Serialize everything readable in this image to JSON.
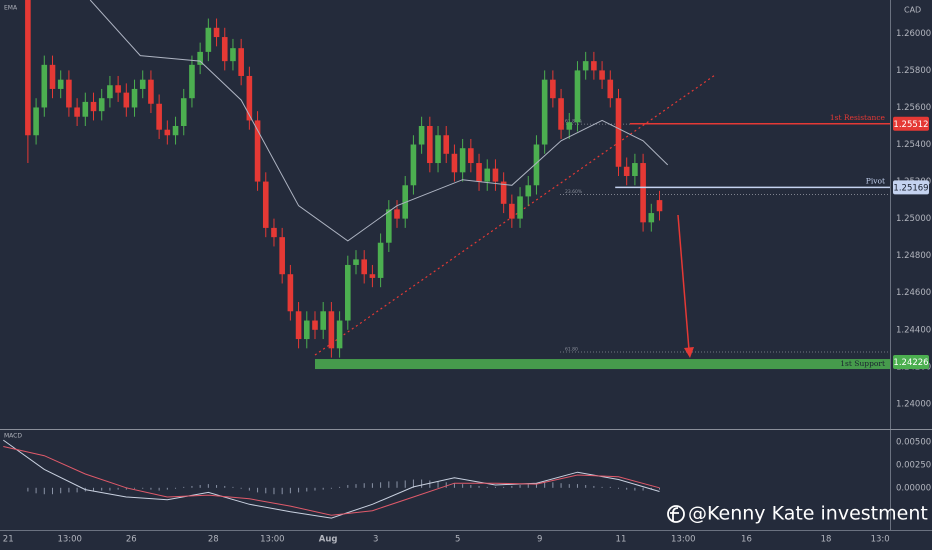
{
  "chart_data": [
    {
      "type": "candlestick",
      "currency": "CAD",
      "open": [
        1.2618,
        1.2545,
        1.256,
        1.2583,
        1.257,
        1.2575,
        1.256,
        1.2555,
        1.2563,
        1.2558,
        1.2565,
        1.2572,
        1.2568,
        1.256,
        1.257,
        1.2575,
        1.2562,
        1.2548,
        1.2545,
        1.255,
        1.2565,
        1.2583,
        1.259,
        1.2603,
        1.2598,
        1.2585,
        1.2592,
        1.2577,
        1.2553,
        1.252,
        1.2495,
        1.249,
        1.247,
        1.245,
        1.2435,
        1.2445,
        1.244,
        1.245,
        1.243,
        1.2445,
        1.2475,
        1.2478,
        1.247,
        1.2468,
        1.2487,
        1.2505,
        1.25,
        1.2518,
        1.254,
        1.255,
        1.253,
        1.2545,
        1.2535,
        1.2525,
        1.2538,
        1.253,
        1.252,
        1.2527,
        1.252,
        1.2508,
        1.25,
        1.2512,
        1.2518,
        1.254,
        1.2575,
        1.2565,
        1.2548,
        1.2552,
        1.258,
        1.2585,
        1.258,
        1.2575,
        1.2565,
        1.2528,
        1.2523,
        1.253,
        1.2498,
        1.251
      ],
      "high": [
        1.2623,
        1.2565,
        1.2588,
        1.2588,
        1.258,
        1.258,
        1.2565,
        1.2568,
        1.2568,
        1.257,
        1.2577,
        1.2577,
        1.2573,
        1.2575,
        1.258,
        1.258,
        1.2567,
        1.2553,
        1.2555,
        1.257,
        1.2588,
        1.2595,
        1.2608,
        1.2608,
        1.2603,
        1.2597,
        1.2597,
        1.2582,
        1.2558,
        1.2525,
        1.25,
        1.2495,
        1.2475,
        1.2455,
        1.245,
        1.245,
        1.2455,
        1.2455,
        1.245,
        1.248,
        1.2483,
        1.2483,
        1.2475,
        1.2492,
        1.251,
        1.251,
        1.2523,
        1.2545,
        1.2555,
        1.2555,
        1.255,
        1.255,
        1.254,
        1.2543,
        1.2543,
        1.2535,
        1.2532,
        1.2532,
        1.2525,
        1.2513,
        1.2517,
        1.2523,
        1.2545,
        1.258,
        1.258,
        1.257,
        1.2557,
        1.2585,
        1.259,
        1.259,
        1.2585,
        1.258,
        1.257,
        1.2533,
        1.2535,
        1.2535,
        1.2508,
        1.2515
      ],
      "low": [
        1.253,
        1.254,
        1.2555,
        1.2565,
        1.2565,
        1.2555,
        1.255,
        1.255,
        1.2553,
        1.2553,
        1.256,
        1.2563,
        1.2555,
        1.2555,
        1.2565,
        1.2557,
        1.2543,
        1.254,
        1.254,
        1.2545,
        1.256,
        1.2578,
        1.2585,
        1.2593,
        1.258,
        1.258,
        1.2572,
        1.2548,
        1.2515,
        1.249,
        1.2485,
        1.2465,
        1.2445,
        1.243,
        1.243,
        1.2435,
        1.2435,
        1.2425,
        1.2425,
        1.244,
        1.247,
        1.2465,
        1.2463,
        1.2463,
        1.2482,
        1.2495,
        1.2495,
        1.2513,
        1.2535,
        1.2525,
        1.2525,
        1.253,
        1.252,
        1.252,
        1.2525,
        1.2515,
        1.2515,
        1.2515,
        1.2503,
        1.2495,
        1.2495,
        1.2507,
        1.2513,
        1.2535,
        1.256,
        1.2543,
        1.2543,
        1.2547,
        1.2575,
        1.2575,
        1.257,
        1.256,
        1.2523,
        1.2518,
        1.2518,
        1.2493,
        1.2493,
        1.2499
      ],
      "close": [
        1.2545,
        1.256,
        1.2583,
        1.257,
        1.2575,
        1.256,
        1.2555,
        1.2563,
        1.2558,
        1.2565,
        1.2572,
        1.2568,
        1.256,
        1.257,
        1.2575,
        1.2562,
        1.2548,
        1.2545,
        1.255,
        1.2565,
        1.2583,
        1.259,
        1.2603,
        1.2598,
        1.2585,
        1.2592,
        1.2577,
        1.2553,
        1.252,
        1.2495,
        1.249,
        1.247,
        1.245,
        1.2435,
        1.2445,
        1.244,
        1.245,
        1.243,
        1.2445,
        1.2475,
        1.2478,
        1.247,
        1.2468,
        1.2487,
        1.2505,
        1.25,
        1.2518,
        1.254,
        1.255,
        1.253,
        1.2545,
        1.2535,
        1.2525,
        1.2538,
        1.253,
        1.252,
        1.2527,
        1.252,
        1.2508,
        1.25,
        1.2512,
        1.2518,
        1.254,
        1.2575,
        1.2565,
        1.2548,
        1.2552,
        1.258,
        1.2585,
        1.258,
        1.2575,
        1.2565,
        1.2528,
        1.2523,
        1.253,
        1.2498,
        1.2503,
        1.2504
      ],
      "up_color": "#4caf50",
      "down_color": "#e53935",
      "series": [
        {
          "name": "EMA",
          "color": "#aeb4c2",
          "x": [
            7.6,
            13.7,
            21,
            26,
            33,
            39,
            45,
            53,
            59,
            65,
            70,
            75,
            78
          ],
          "values": [
            1.2618,
            1.2588,
            1.2585,
            1.2564,
            1.2507,
            1.2488,
            1.2507,
            1.2521,
            1.2518,
            1.2542,
            1.2553,
            1.2542,
            1.2529
          ]
        }
      ],
      "xlim": [
        -3.4,
        105.1
      ],
      "xticks": [
        {
          "value": -2.4,
          "label": "21"
        },
        {
          "value": 5.1,
          "label": "13:00"
        },
        {
          "value": 12.6,
          "label": "26"
        },
        {
          "value": 22.6,
          "label": "28"
        },
        {
          "value": 29.8,
          "label": "13:00"
        },
        {
          "value": 36.6,
          "label": "Aug"
        },
        {
          "value": 42.4,
          "label": "3"
        },
        {
          "value": 52.4,
          "label": "5"
        },
        {
          "value": 62.4,
          "label": "9"
        },
        {
          "value": 72.3,
          "label": "11"
        },
        {
          "value": 79.9,
          "label": "13:00"
        },
        {
          "value": 87.6,
          "label": "16"
        },
        {
          "value": 97.3,
          "label": "18"
        },
        {
          "value": 103.9,
          "label": "13:0"
        }
      ],
      "ylim": [
        1.2387,
        1.2618
      ],
      "yticks": [
        {
          "value": 1.26,
          "label": "1.26000"
        },
        {
          "value": 1.258,
          "label": "1.25800"
        },
        {
          "value": 1.256,
          "label": "1.25600"
        },
        {
          "value": 1.254,
          "label": "1.25400"
        },
        {
          "value": 1.252,
          "label": "1.25200"
        },
        {
          "value": 1.25,
          "label": "1.25000"
        },
        {
          "value": 1.248,
          "label": "1.24800"
        },
        {
          "value": 1.246,
          "label": "1.24600"
        },
        {
          "value": 1.244,
          "label": "1.24400"
        },
        {
          "value": 1.242,
          "label": "1.24200"
        },
        {
          "value": 1.24,
          "label": "1.24000"
        }
      ],
      "levels": [
        {
          "name": "1st Resistance",
          "value": 1.25512,
          "from": 73.4,
          "color": "#e53935"
        },
        {
          "name": "Pivot",
          "value": 1.25169,
          "from": 71.6,
          "color": "#c5d3f0"
        },
        {
          "name": "1st Support",
          "value": 1.24226,
          "from": 35,
          "color": "#4caf50"
        }
      ],
      "fib_labels": [
        {
          "label": "61.80%",
          "value": 1.2551
        },
        {
          "label": "23.60%",
          "value": 1.2513
        },
        {
          "label": "61.80",
          "value": 1.2428
        }
      ]
    },
    {
      "type": "macd",
      "title": "MACD",
      "histogram": [
        -0.0004,
        -0.0006,
        -0.0007,
        -0.0007,
        -0.0006,
        -0.0005,
        -0.0005,
        -0.0004,
        -0.0004,
        -0.0003,
        -0.0003,
        -0.0002,
        -0.0002,
        -0.0001,
        -0.0001,
        -0.0002,
        -0.0003,
        -0.0002,
        -0.0001,
        0.0001,
        0.0002,
        0.0003,
        0.0004,
        0.0003,
        0.0002,
        0.0001,
        -0.0001,
        -0.0003,
        -0.0005,
        -0.0006,
        -0.0007,
        -0.0007,
        -0.0006,
        -0.0005,
        -0.0004,
        -0.0003,
        -0.0002,
        -0.0001,
        0.0001,
        0.0003,
        0.0004,
        0.0005,
        0.0005,
        0.0006,
        0.0007,
        0.0007,
        0.0008,
        0.0009,
        0.0009,
        0.0008,
        0.0007,
        0.0006,
        0.0005,
        0.0004,
        0.0003,
        0.0002,
        0.0001,
        0.0001,
        0.0001,
        0.0002,
        0.0003,
        0.0004,
        0.0005,
        0.0006,
        0.0006,
        0.0005,
        0.0004,
        0.0004,
        0.0003,
        0.0002,
        0.0001,
        0.0001,
        -0.0001,
        -0.0002,
        -0.0003,
        -0.0003,
        -0.0002,
        -0.0002
      ],
      "histogram_color": "#8a93a6",
      "series": [
        {
          "color": "#c9d1e0",
          "x": [
            -3,
            2,
            7,
            12,
            17,
            22,
            27,
            32,
            37,
            42,
            47,
            52,
            57,
            62,
            67,
            72,
            77
          ],
          "values": [
            0.0052,
            0.002,
            -0.0002,
            -0.001,
            -0.0013,
            -0.0005,
            -0.0018,
            -0.0026,
            -0.0033,
            -0.0018,
            0.0001,
            0.0011,
            0.0003,
            0.0005,
            0.0017,
            0.0009,
            -0.0004
          ]
        },
        {
          "color": "#e05a6a",
          "x": [
            -3,
            2,
            7,
            12,
            17,
            22,
            27,
            32,
            37,
            42,
            47,
            52,
            57,
            62,
            67,
            72,
            77
          ],
          "values": [
            0.0045,
            0.0035,
            0.0015,
            0,
            -0.001,
            -0.0008,
            -0.0012,
            -0.002,
            -0.003,
            -0.0025,
            -0.001,
            0.0005,
            0.0005,
            0.0004,
            0.0014,
            0.0012,
            0
          ]
        }
      ],
      "xlim": [
        -3.4,
        105.1
      ],
      "ylim": [
        -0.0046,
        0.0063
      ],
      "yticks": [
        {
          "value": 0.005,
          "label": "0.00500"
        },
        {
          "value": 0.0025,
          "label": "0.00250"
        },
        {
          "value": 0,
          "label": "0.00000"
        }
      ]
    }
  ],
  "watermark": "@Kenny Kate investment"
}
